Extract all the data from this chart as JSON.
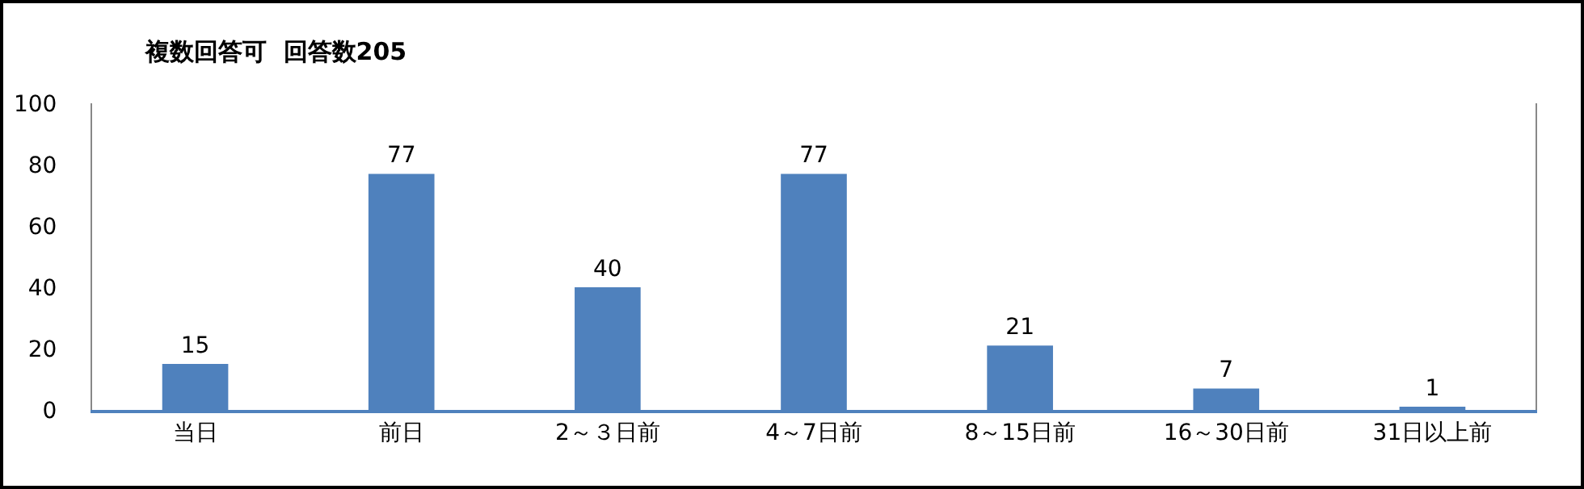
{
  "chart_data": {
    "type": "bar",
    "title": "複数回答可  回答数205",
    "categories": [
      "当日",
      "前日",
      "2～３日前",
      "4～7日前",
      "8～15日前",
      "16～30日前",
      "31日以上前"
    ],
    "values": [
      15,
      77,
      40,
      77,
      21,
      7,
      1
    ],
    "color": "#4f81bd",
    "ylim": [
      0,
      100
    ],
    "yticks": [
      0,
      20,
      40,
      60,
      80,
      100
    ],
    "grid": false,
    "data_labels": true,
    "legend": false
  }
}
